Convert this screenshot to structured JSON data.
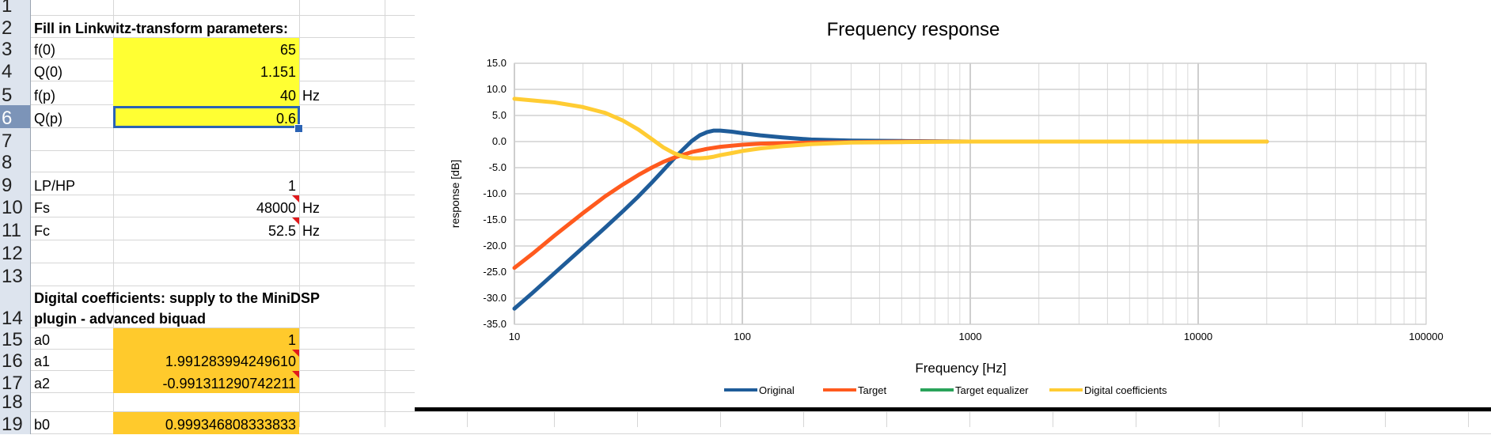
{
  "sheet": {
    "rows": [
      {
        "num": "1",
        "label": "",
        "value": "",
        "unit": "",
        "style": "",
        "flag": false
      },
      {
        "num": "2",
        "label": "Fill in Linkwitz-transform parameters:",
        "value": "",
        "unit": "",
        "style": "bold",
        "flag": false
      },
      {
        "num": "3",
        "label": "f(0)",
        "value": "65",
        "unit": "",
        "style": "yellow",
        "flag": false
      },
      {
        "num": "4",
        "label": "Q(0)",
        "value": "1.151",
        "unit": "",
        "style": "yellow",
        "flag": false
      },
      {
        "num": "5",
        "label": "f(p)",
        "value": "40",
        "unit": "Hz",
        "style": "yellow",
        "flag": false
      },
      {
        "num": "6",
        "label": "Q(p)",
        "value": "0.6",
        "unit": "",
        "style": "yellow",
        "flag": false
      },
      {
        "num": "7",
        "label": "",
        "value": "",
        "unit": "",
        "style": "",
        "flag": false
      },
      {
        "num": "8",
        "label": "",
        "value": "",
        "unit": "",
        "style": "",
        "flag": false
      },
      {
        "num": "9",
        "label": "LP/HP",
        "value": "1",
        "unit": "",
        "style": "",
        "flag": false
      },
      {
        "num": "10",
        "label": "Fs",
        "value": "48000",
        "unit": "Hz",
        "style": "",
        "flag": true
      },
      {
        "num": "11",
        "label": "Fc",
        "value": "52.5",
        "unit": "Hz",
        "style": "",
        "flag": true
      },
      {
        "num": "12",
        "label": "",
        "value": "",
        "unit": "",
        "style": "",
        "flag": false
      },
      {
        "num": "13",
        "label": "",
        "value": "",
        "unit": "",
        "style": "",
        "flag": false
      },
      {
        "num": "14",
        "label": "",
        "value": "",
        "unit": "",
        "style": "",
        "flag": false
      },
      {
        "num": "15",
        "label": "a0",
        "value": "1",
        "unit": "",
        "style": "orange",
        "flag": false
      },
      {
        "num": "16",
        "label": "a1",
        "value": "1.991283994249610",
        "unit": "",
        "style": "orange",
        "flag": true
      },
      {
        "num": "17",
        "label": "a2",
        "value": "-0.991311290742211",
        "unit": "",
        "style": "orange",
        "flag": true
      },
      {
        "num": "18",
        "label": "",
        "value": "",
        "unit": "",
        "style": "",
        "flag": false
      },
      {
        "num": "19",
        "label": "b0",
        "value": "0.999346808333833",
        "unit": "",
        "style": "orange",
        "flag": false
      }
    ],
    "selected_row": "6",
    "coeff_heading_line1": "Digital coefficients: supply to the MiniDSP",
    "coeff_heading_line2": "plugin - advanced biquad"
  },
  "chart_data": {
    "type": "line",
    "title": "Frequency response",
    "xlabel": "Frequency [Hz]",
    "ylabel": "response [dB]",
    "x_scale": "log",
    "xlim": [
      10,
      100000
    ],
    "ylim": [
      -35,
      15
    ],
    "x_ticks": [
      "10",
      "100",
      "1000",
      "10000",
      "100000"
    ],
    "y_ticks": [
      "15.0",
      "10.0",
      "5.0",
      "0.0",
      "-5.0",
      "-10.0",
      "-15.0",
      "-20.0",
      "-25.0",
      "-30.0",
      "-35.0"
    ],
    "grid": true,
    "legend_position": "bottom",
    "series": [
      {
        "name": "Original",
        "color": "#1f5c99",
        "x": [
          10,
          12,
          15,
          20,
          25,
          30,
          35,
          40,
          45,
          50,
          55,
          60,
          65,
          70,
          75,
          80,
          90,
          100,
          120,
          150,
          200,
          300,
          500,
          1000,
          2000,
          5000,
          10000,
          20000
        ],
        "y": [
          -32.0,
          -29.0,
          -25.2,
          -20.3,
          -16.5,
          -13.3,
          -10.5,
          -7.9,
          -5.5,
          -3.3,
          -1.5,
          0.1,
          1.2,
          1.8,
          2.1,
          2.1,
          1.9,
          1.6,
          1.2,
          0.8,
          0.4,
          0.2,
          0.1,
          0.0,
          0.0,
          0.0,
          0.0,
          0.0
        ]
      },
      {
        "name": "Target",
        "color": "#ff5a1e",
        "x": [
          10,
          12,
          15,
          20,
          25,
          30,
          35,
          40,
          45,
          50,
          60,
          70,
          80,
          100,
          120,
          150,
          200,
          300,
          500,
          1000,
          2000,
          5000,
          10000,
          20000
        ],
        "y": [
          -24.2,
          -21.5,
          -18.0,
          -13.7,
          -10.5,
          -8.2,
          -6.4,
          -5.0,
          -3.9,
          -3.1,
          -2.0,
          -1.4,
          -1.0,
          -0.6,
          -0.4,
          -0.3,
          -0.2,
          -0.1,
          0.0,
          0.0,
          0.0,
          0.0,
          0.0,
          0.0
        ]
      },
      {
        "name": "Target equalizer",
        "color": "#2aa35a",
        "x": [],
        "y": []
      },
      {
        "name": "Digital coefficients",
        "color": "#ffcc33",
        "x": [
          10,
          15,
          20,
          25,
          30,
          35,
          40,
          45,
          50,
          55,
          60,
          65,
          70,
          75,
          80,
          90,
          100,
          120,
          150,
          200,
          300,
          500,
          1000,
          2000,
          5000,
          10000,
          20000
        ],
        "y": [
          8.2,
          7.5,
          6.6,
          5.5,
          4.0,
          2.3,
          0.5,
          -1.1,
          -2.2,
          -2.9,
          -3.2,
          -3.2,
          -3.1,
          -2.9,
          -2.6,
          -2.2,
          -1.8,
          -1.3,
          -0.9,
          -0.5,
          -0.2,
          -0.1,
          0.0,
          0.0,
          0.0,
          0.0,
          0.0
        ]
      }
    ]
  }
}
